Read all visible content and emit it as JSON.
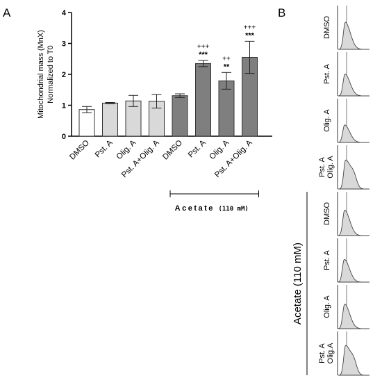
{
  "panel_labels": {
    "a": "A",
    "b": "B"
  },
  "chart_data": [
    {
      "type": "bar",
      "panel": "A",
      "ylabel": "Mitochondrial mass (MnX)",
      "ylabel2": "Normalized to T0",
      "ylim": [
        0,
        4
      ],
      "yticks": [
        0,
        1,
        2,
        3,
        4
      ],
      "categories": [
        "DMSO",
        "Pst. A",
        "Olig. A",
        "Pst. A+Olig. A",
        "DMSO",
        "Pst. A",
        "Olig. A",
        "Pst. A+Olig. A"
      ],
      "values": [
        0.86,
        1.07,
        1.14,
        1.13,
        1.31,
        2.35,
        1.79,
        2.55
      ],
      "errors": [
        0.1,
        0.02,
        0.18,
        0.22,
        0.06,
        0.1,
        0.27,
        0.52
      ],
      "colors": [
        "#ffffff",
        "#d9d9d9",
        "#d9d9d9",
        "#d9d9d9",
        "#7f7f7f",
        "#7f7f7f",
        "#7f7f7f",
        "#7f7f7f"
      ],
      "significance": [
        "",
        "",
        "",
        "",
        "",
        "***",
        "**",
        "***"
      ],
      "significance_plus": [
        "",
        "",
        "",
        "",
        "",
        "+++",
        "++",
        "+++"
      ],
      "group_label": "Acetate",
      "group_sublabel": "(110 mM)"
    },
    {
      "type": "histogram",
      "panel": "B",
      "rows": [
        "DMSO",
        "Pst. A",
        "Olig. A",
        "Pst. A Olig. A",
        "DMSO",
        "Pst. A",
        "Olig. A",
        "Pst. A Olig.A"
      ],
      "group_label": "Acetate (110 mM)",
      "fill": "#d9d9d9"
    }
  ]
}
